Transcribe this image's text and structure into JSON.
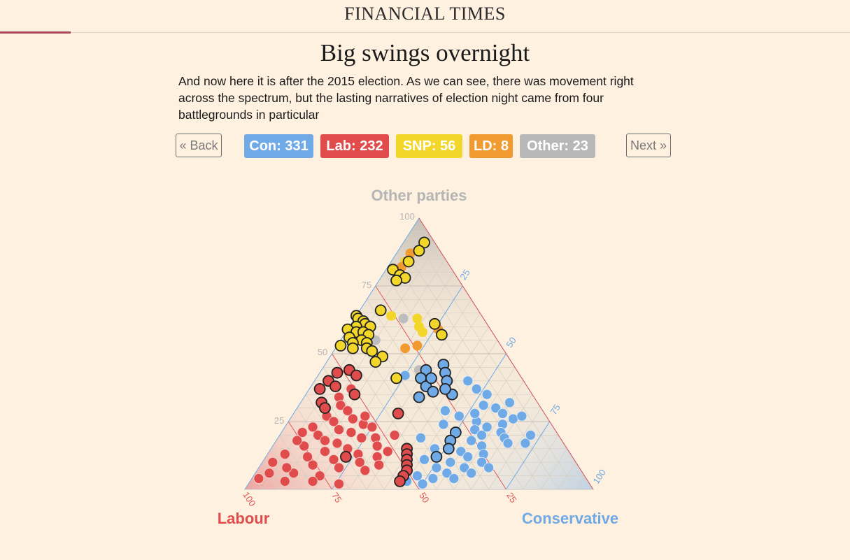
{
  "masthead": {
    "logo": "FINANCIAL TIMES"
  },
  "title": "Big swings overnight",
  "intro": "And now here it is after the 2015 election. As we can see, there was movement right across the spectrum, but the lasting narratives of election night came from four battlegrounds in particular",
  "nav": {
    "back_label": "« Back",
    "next_label": "Next »"
  },
  "seat_badges": [
    {
      "label": "Con: 331",
      "color": "#6fa9e6"
    },
    {
      "label": "Lab: 232",
      "color": "#e04b4b"
    },
    {
      "label": "SNP: 56",
      "color": "#f2d72a"
    },
    {
      "label": "LD: 8",
      "color": "#f19a30"
    },
    {
      "label": "Other: 23",
      "color": "#b8b8b8"
    }
  ],
  "colors": {
    "con": "#6fa9e6",
    "lab": "#e04b4b",
    "snp": "#f2d72a",
    "ld": "#f19a30",
    "other": "#bdbdbd",
    "grid_lab": "#e0575a",
    "grid_con": "#6fa9e6",
    "grid_other": "#c7c7c7"
  },
  "chart_data": {
    "type": "scatter",
    "subtype": "ternary",
    "axes": {
      "top": {
        "label": "Other parties",
        "color": "#b5b5b5",
        "ticks": [
          "25",
          "50",
          "75",
          "100"
        ]
      },
      "left": {
        "label": "Labour",
        "color": "#e04b4b",
        "ticks": [
          "100",
          "75",
          "50",
          "25"
        ]
      },
      "right": {
        "label": "Conservative",
        "color": "#6fa9e6",
        "ticks": [
          "25",
          "50",
          "75",
          "100"
        ]
      }
    },
    "range": [
      0,
      100
    ],
    "grid": true,
    "legend": "none",
    "units": "vote share (%)",
    "points": [
      {
        "other": 91,
        "con": 6,
        "party": "snp",
        "hl": true
      },
      {
        "other": 88,
        "con": 6,
        "party": "snp",
        "hl": true
      },
      {
        "other": 84,
        "con": 5,
        "party": "snp",
        "hl": true
      },
      {
        "other": 87,
        "con": 4,
        "party": "ld",
        "hl": false
      },
      {
        "other": 84,
        "con": 4,
        "party": "snp",
        "hl": false
      },
      {
        "other": 82,
        "con": 4,
        "party": "ld",
        "hl": false
      },
      {
        "other": 81,
        "con": 2,
        "party": "snp",
        "hl": true
      },
      {
        "other": 79,
        "con": 5,
        "party": "snp",
        "hl": true
      },
      {
        "other": 78,
        "con": 7,
        "party": "snp",
        "hl": true
      },
      {
        "other": 77,
        "con": 5,
        "party": "snp",
        "hl": true
      },
      {
        "other": 66,
        "con": 6,
        "party": "snp",
        "hl": true
      },
      {
        "other": 64,
        "con": 0,
        "party": "snp",
        "hl": true
      },
      {
        "other": 63,
        "con": 1,
        "party": "snp",
        "hl": true
      },
      {
        "other": 62,
        "con": 3,
        "party": "snp",
        "hl": true
      },
      {
        "other": 61,
        "con": 4,
        "party": "snp",
        "hl": true
      },
      {
        "other": 60,
        "con": 2,
        "party": "snp",
        "hl": true
      },
      {
        "other": 60,
        "con": 6,
        "party": "snp",
        "hl": true
      },
      {
        "other": 59,
        "con": 0,
        "party": "snp",
        "hl": true
      },
      {
        "other": 58,
        "con": 3,
        "party": "snp",
        "hl": true
      },
      {
        "other": 58,
        "con": 5,
        "party": "snp",
        "hl": true
      },
      {
        "other": 57,
        "con": 7,
        "party": "snp",
        "hl": true
      },
      {
        "other": 56,
        "con": 2,
        "party": "snp",
        "hl": true
      },
      {
        "other": 55,
        "con": 6,
        "party": "snp",
        "hl": true
      },
      {
        "other": 54,
        "con": 8,
        "party": "snp",
        "hl": true
      },
      {
        "other": 54,
        "con": 4,
        "party": "snp",
        "hl": true
      },
      {
        "other": 53,
        "con": 1,
        "party": "snp",
        "hl": true
      },
      {
        "other": 52,
        "con": 9,
        "party": "snp",
        "hl": true
      },
      {
        "other": 52,
        "con": 5,
        "party": "snp",
        "hl": true
      },
      {
        "other": 51,
        "con": 11,
        "party": "snp",
        "hl": true
      },
      {
        "other": 49,
        "con": 15,
        "party": "snp",
        "hl": true
      },
      {
        "other": 47,
        "con": 14,
        "party": "snp",
        "hl": true
      },
      {
        "other": 44,
        "con": 8,
        "party": "snp",
        "hl": true
      },
      {
        "other": 41,
        "con": 23,
        "party": "snp",
        "hl": true
      },
      {
        "other": 64,
        "con": 10,
        "party": "snp",
        "hl": false
      },
      {
        "other": 63,
        "con": 18,
        "party": "snp",
        "hl": false
      },
      {
        "other": 60,
        "con": 20,
        "party": "snp",
        "hl": false
      },
      {
        "other": 63,
        "con": 14,
        "party": "other",
        "hl": false
      },
      {
        "other": 55,
        "con": 10,
        "party": "other",
        "hl": false
      },
      {
        "other": 61,
        "con": 24,
        "party": "snp",
        "hl": true
      },
      {
        "other": 59,
        "con": 26,
        "party": "ld",
        "hl": false
      },
      {
        "other": 58,
        "con": 22,
        "party": "snp",
        "hl": false
      },
      {
        "other": 57,
        "con": 28,
        "party": "snp",
        "hl": true
      },
      {
        "other": 52,
        "con": 20,
        "party": "ld",
        "hl": false
      },
      {
        "other": 53,
        "con": 23,
        "party": "ld",
        "hl": false
      },
      {
        "other": 46,
        "con": 34,
        "party": "con",
        "hl": true
      },
      {
        "other": 43,
        "con": 36,
        "party": "con",
        "hl": true
      },
      {
        "other": 40,
        "con": 38,
        "party": "con",
        "hl": true
      },
      {
        "other": 44,
        "con": 30,
        "party": "con",
        "hl": true
      },
      {
        "other": 41,
        "con": 30,
        "party": "con",
        "hl": true
      },
      {
        "other": 38,
        "con": 33,
        "party": "con",
        "hl": true
      },
      {
        "other": 36,
        "con": 36,
        "party": "con",
        "hl": true
      },
      {
        "other": 34,
        "con": 33,
        "party": "con",
        "hl": true
      },
      {
        "other": 44,
        "con": 28,
        "party": "other",
        "hl": false
      },
      {
        "other": 42,
        "con": 25,
        "party": "con",
        "hl": false
      },
      {
        "other": 35,
        "con": 42,
        "party": "con",
        "hl": true
      },
      {
        "other": 37,
        "con": 39,
        "party": "con",
        "hl": true
      },
      {
        "other": 41,
        "con": 33,
        "party": "con",
        "hl": true
      },
      {
        "other": 44,
        "con": 8,
        "party": "lab",
        "hl": true
      },
      {
        "other": 43,
        "con": 5,
        "party": "lab",
        "hl": true
      },
      {
        "other": 42,
        "con": 11,
        "party": "lab",
        "hl": true
      },
      {
        "other": 40,
        "con": 4,
        "party": "lab",
        "hl": true
      },
      {
        "other": 38,
        "con": 7,
        "party": "lab",
        "hl": true
      },
      {
        "other": 37,
        "con": 3,
        "party": "lab",
        "hl": true
      },
      {
        "other": 35,
        "con": 14,
        "party": "lab",
        "hl": true
      },
      {
        "other": 32,
        "con": 6,
        "party": "lab",
        "hl": true
      },
      {
        "other": 30,
        "con": 8,
        "party": "lab",
        "hl": true
      },
      {
        "other": 37,
        "con": 12,
        "party": "lab",
        "hl": false
      },
      {
        "other": 34,
        "con": 10,
        "party": "lab",
        "hl": false
      },
      {
        "other": 31,
        "con": 12,
        "party": "lab",
        "hl": false
      },
      {
        "other": 29,
        "con": 15,
        "party": "lab",
        "hl": false
      },
      {
        "other": 27,
        "con": 10,
        "party": "lab",
        "hl": false
      },
      {
        "other": 26,
        "con": 18,
        "party": "lab",
        "hl": false
      },
      {
        "other": 25,
        "con": 13,
        "party": "lab",
        "hl": false
      },
      {
        "other": 24,
        "con": 22,
        "party": "lab",
        "hl": false
      },
      {
        "other": 23,
        "con": 8,
        "party": "lab",
        "hl": false
      },
      {
        "other": 22,
        "con": 16,
        "party": "lab",
        "hl": false
      },
      {
        "other": 21,
        "con": 20,
        "party": "lab",
        "hl": false
      },
      {
        "other": 20,
        "con": 11,
        "party": "lab",
        "hl": false
      },
      {
        "other": 19,
        "con": 24,
        "party": "lab",
        "hl": false
      },
      {
        "other": 18,
        "con": 14,
        "party": "lab",
        "hl": false
      },
      {
        "other": 17,
        "con": 18,
        "party": "lab",
        "hl": false
      },
      {
        "other": 16,
        "con": 9,
        "party": "lab",
        "hl": false
      },
      {
        "other": 15,
        "con": 22,
        "party": "lab",
        "hl": false
      },
      {
        "other": 14,
        "con": 16,
        "party": "lab",
        "hl": false
      },
      {
        "other": 13,
        "con": 26,
        "party": "lab",
        "hl": false
      },
      {
        "other": 12,
        "con": 12,
        "party": "lab",
        "hl": false
      },
      {
        "other": 11,
        "con": 20,
        "party": "lab",
        "hl": false
      },
      {
        "other": 10,
        "con": 28,
        "party": "lab",
        "hl": false
      },
      {
        "other": 9,
        "con": 15,
        "party": "lab",
        "hl": false
      },
      {
        "other": 8,
        "con": 23,
        "party": "lab",
        "hl": false
      },
      {
        "other": 7,
        "con": 31,
        "party": "lab",
        "hl": false
      },
      {
        "other": 6,
        "con": 11,
        "party": "lab",
        "hl": false
      },
      {
        "other": 5,
        "con": 19,
        "party": "lab",
        "hl": false
      },
      {
        "other": 23,
        "con": 25,
        "party": "lab",
        "hl": false
      },
      {
        "other": 19,
        "con": 28,
        "party": "lab",
        "hl": false
      },
      {
        "other": 16,
        "con": 30,
        "party": "lab",
        "hl": false
      },
      {
        "other": 12,
        "con": 32,
        "party": "lab",
        "hl": false
      },
      {
        "other": 9,
        "con": 34,
        "party": "lab",
        "hl": false
      },
      {
        "other": 21,
        "con": 6,
        "party": "lab",
        "hl": false
      },
      {
        "other": 13,
        "con": 5,
        "party": "lab",
        "hl": false
      },
      {
        "other": 8,
        "con": 8,
        "party": "lab",
        "hl": false
      },
      {
        "other": 10,
        "con": 3,
        "party": "lab",
        "hl": false
      },
      {
        "other": 6,
        "con": 4,
        "party": "lab",
        "hl": false
      },
      {
        "other": 4,
        "con": 2,
        "party": "lab",
        "hl": false
      },
      {
        "other": 3,
        "con": 10,
        "party": "lab",
        "hl": false
      },
      {
        "other": 3,
        "con": 18,
        "party": "lab",
        "hl": false
      },
      {
        "other": 2,
        "con": 26,
        "party": "lab",
        "hl": false
      },
      {
        "other": 27,
        "con": 21,
        "party": "lab",
        "hl": false
      },
      {
        "other": 20,
        "con": 33,
        "party": "lab",
        "hl": false
      },
      {
        "other": 14,
        "con": 34,
        "party": "lab",
        "hl": false
      },
      {
        "other": 18,
        "con": 6,
        "party": "lab",
        "hl": false
      },
      {
        "other": 28,
        "con": 30,
        "party": "lab",
        "hl": true
      },
      {
        "other": 12,
        "con": 23,
        "party": "lab",
        "hl": true
      },
      {
        "other": 15,
        "con": 39,
        "party": "lab",
        "hl": true
      },
      {
        "other": 13,
        "con": 40,
        "party": "lab",
        "hl": true
      },
      {
        "other": 11,
        "con": 41,
        "party": "lab",
        "hl": true
      },
      {
        "other": 9,
        "con": 42,
        "party": "lab",
        "hl": true
      },
      {
        "other": 7,
        "con": 43,
        "party": "lab",
        "hl": true
      },
      {
        "other": 5,
        "con": 43,
        "party": "lab",
        "hl": true
      },
      {
        "other": 3,
        "con": 43,
        "party": "lab",
        "hl": true
      },
      {
        "other": 21,
        "con": 50,
        "party": "con",
        "hl": true
      },
      {
        "other": 18,
        "con": 50,
        "party": "con",
        "hl": true
      },
      {
        "other": 15,
        "con": 51,
        "party": "con",
        "hl": true
      },
      {
        "other": 12,
        "con": 49,
        "party": "con",
        "hl": true
      },
      {
        "other": 27,
        "con": 48,
        "party": "con",
        "hl": false
      },
      {
        "other": 29,
        "con": 43,
        "party": "con",
        "hl": false
      },
      {
        "other": 25,
        "con": 54,
        "party": "con",
        "hl": false
      },
      {
        "other": 22,
        "con": 55,
        "party": "con",
        "hl": false
      },
      {
        "other": 20,
        "con": 58,
        "party": "con",
        "hl": false
      },
      {
        "other": 18,
        "con": 56,
        "party": "con",
        "hl": false
      },
      {
        "other": 16,
        "con": 60,
        "party": "con",
        "hl": false
      },
      {
        "other": 14,
        "con": 55,
        "party": "con",
        "hl": false
      },
      {
        "other": 12,
        "con": 58,
        "party": "con",
        "hl": false
      },
      {
        "other": 10,
        "con": 54,
        "party": "con",
        "hl": false
      },
      {
        "other": 8,
        "con": 51,
        "party": "con",
        "hl": false
      },
      {
        "other": 6,
        "con": 55,
        "party": "con",
        "hl": false
      },
      {
        "other": 4,
        "con": 52,
        "party": "con",
        "hl": false
      },
      {
        "other": 2,
        "con": 50,
        "party": "con",
        "hl": false
      },
      {
        "other": 24,
        "con": 62,
        "party": "con",
        "hl": false
      },
      {
        "other": 21,
        "con": 63,
        "party": "con",
        "hl": false
      },
      {
        "other": 19,
        "con": 65,
        "party": "con",
        "hl": false
      },
      {
        "other": 17,
        "con": 67,
        "party": "con",
        "hl": false
      },
      {
        "other": 23,
        "con": 58,
        "party": "con",
        "hl": false
      },
      {
        "other": 13,
        "con": 62,
        "party": "con",
        "hl": false
      },
      {
        "other": 10,
        "con": 63,
        "party": "con",
        "hl": false
      },
      {
        "other": 8,
        "con": 59,
        "party": "con",
        "hl": false
      },
      {
        "other": 6,
        "con": 62,
        "party": "con",
        "hl": false
      },
      {
        "other": 15,
        "con": 47,
        "party": "con",
        "hl": false
      },
      {
        "other": 11,
        "con": 46,
        "party": "con",
        "hl": false
      },
      {
        "other": 5,
        "con": 47,
        "party": "con",
        "hl": false
      },
      {
        "other": 30,
        "con": 57,
        "party": "con",
        "hl": false
      },
      {
        "other": 28,
        "con": 60,
        "party": "con",
        "hl": false
      },
      {
        "other": 26,
        "con": 64,
        "party": "con",
        "hl": false
      },
      {
        "other": 32,
        "con": 60,
        "party": "con",
        "hl": false
      },
      {
        "other": 31,
        "con": 53,
        "party": "con",
        "hl": false
      },
      {
        "other": 27,
        "con": 66,
        "party": "con",
        "hl": false
      },
      {
        "other": 17,
        "con": 72,
        "party": "con",
        "hl": false
      },
      {
        "other": 20,
        "con": 72,
        "party": "con",
        "hl": false
      },
      {
        "other": 8,
        "con": 66,
        "party": "con",
        "hl": false
      },
      {
        "other": 4,
        "con": 58,
        "party": "con",
        "hl": false
      },
      {
        "other": 3,
        "con": 45,
        "party": "con",
        "hl": false
      },
      {
        "other": 35,
        "con": 52,
        "party": "con",
        "hl": false
      },
      {
        "other": 28,
        "con": 52,
        "party": "con",
        "hl": false
      },
      {
        "other": 24,
        "con": 45,
        "party": "con",
        "hl": false
      },
      {
        "other": 19,
        "con": 41,
        "party": "con",
        "hl": false
      },
      {
        "other": 40,
        "con": 44,
        "party": "con",
        "hl": false
      },
      {
        "other": 37,
        "con": 48,
        "party": "con",
        "hl": false
      }
    ]
  }
}
